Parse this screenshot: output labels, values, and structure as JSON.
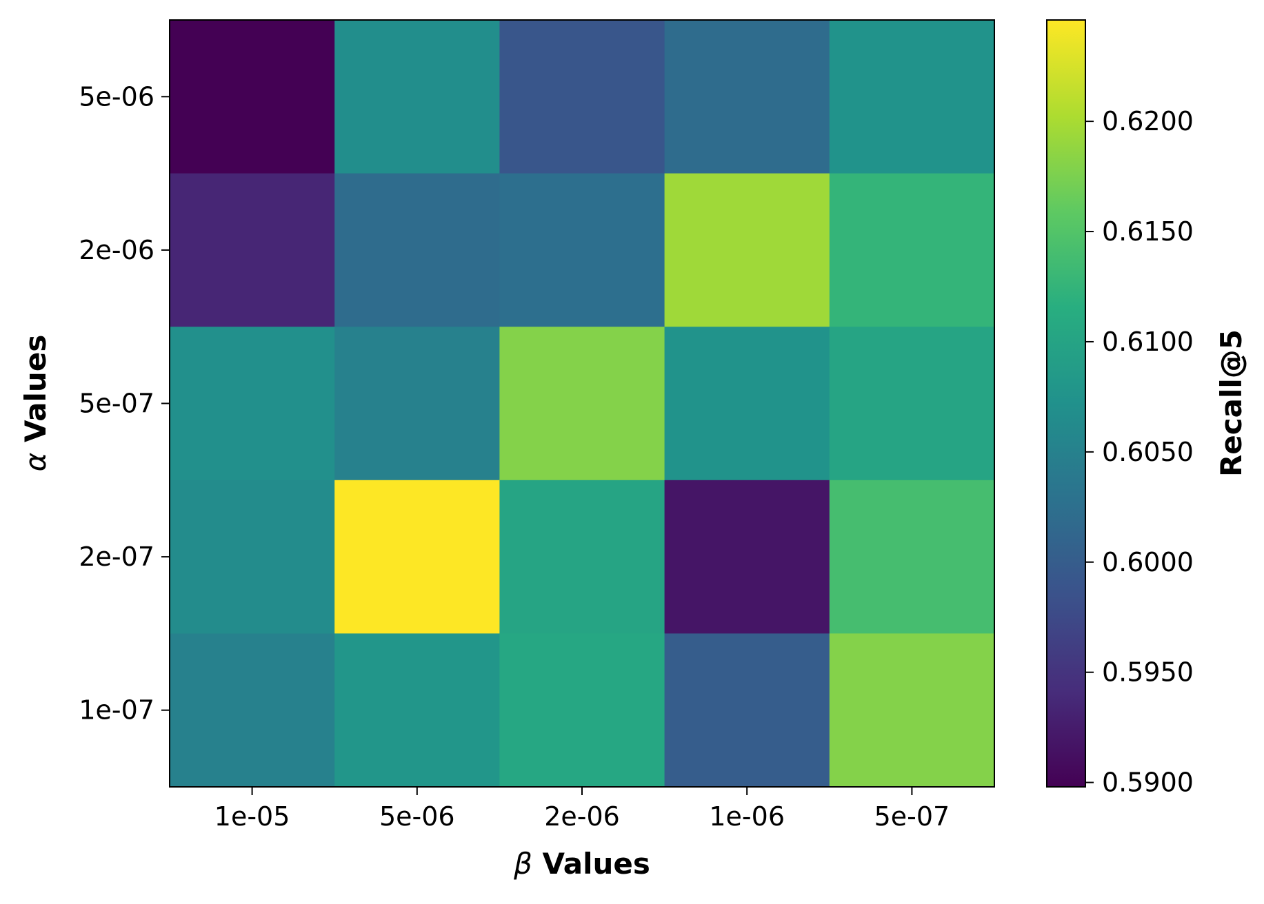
{
  "chart_data": {
    "type": "heatmap",
    "title": "",
    "xlabel_symbol": "β",
    "xlabel_text": "Values",
    "ylabel_symbol": "α",
    "ylabel_text": "Values",
    "x_categories": [
      "1e-05",
      "5e-06",
      "2e-06",
      "1e-06",
      "5e-07"
    ],
    "y_categories": [
      "5e-06",
      "2e-06",
      "5e-07",
      "2e-07",
      "1e-07"
    ],
    "values": [
      [
        0.5898,
        0.6068,
        0.599,
        0.602,
        0.6075
      ],
      [
        0.5935,
        0.602,
        0.6025,
        0.6195,
        0.6125
      ],
      [
        0.607,
        0.605,
        0.618,
        0.6075,
        0.61
      ],
      [
        0.6065,
        0.6246,
        0.61,
        0.5918,
        0.614
      ],
      [
        0.605,
        0.608,
        0.6105,
        0.6,
        0.618
      ]
    ],
    "colormap": "viridis",
    "vmin": 0.5898,
    "vmax": 0.6246,
    "colorbar": {
      "label": "Recall@5",
      "ticks": [
        0.59,
        0.595,
        0.6,
        0.605,
        0.61,
        0.615,
        0.62
      ],
      "tick_labels": [
        "0.5900",
        "0.5950",
        "0.6000",
        "0.6050",
        "0.6100",
        "0.6150",
        "0.6200"
      ]
    }
  }
}
